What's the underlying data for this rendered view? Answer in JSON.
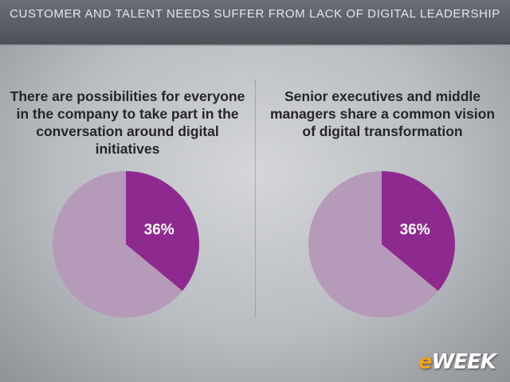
{
  "header": {
    "title": "CUSTOMER AND TALENT NEEDS SUFFER FROM LACK OF DIGITAL LEADERSHIP"
  },
  "colors": {
    "highlight": "#8e2a8f",
    "remainder": "#b59ab9",
    "label": "#ffffff"
  },
  "chart_data": [
    {
      "type": "pie",
      "title": "There are possibilities for everyone in the company to take part in the conversation around digital initiatives",
      "slices": [
        {
          "label": "36%",
          "value": 36
        },
        {
          "label": "",
          "value": 64
        }
      ]
    },
    {
      "type": "pie",
      "title": "Senior executives and middle managers share a common vision of digital transformation",
      "slices": [
        {
          "label": "36%",
          "value": 36
        },
        {
          "label": "",
          "value": 64
        }
      ]
    }
  ],
  "logo": {
    "prefix": "e",
    "suffix": "WEEK"
  }
}
